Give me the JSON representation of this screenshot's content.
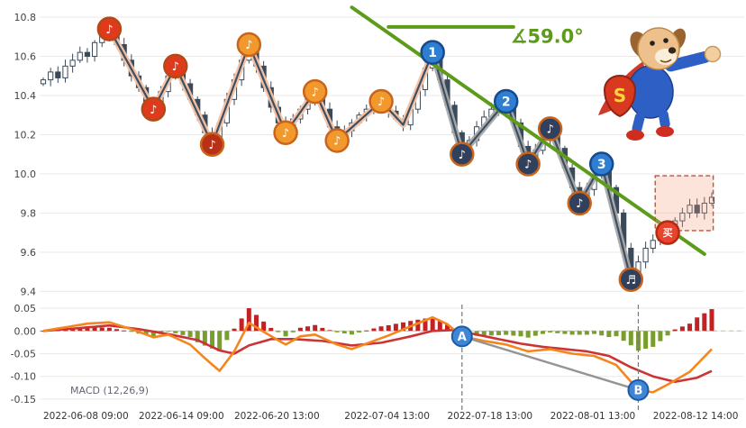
{
  "mascot": {
    "badge": "S"
  },
  "chart_data": {
    "type": "candlestick",
    "title": "",
    "x_axis_labels": [
      "2022-06-08 09:00",
      "2022-06-14 09:00",
      "2022-06-20 13:00",
      "2022-07-04 13:00",
      "2022-07-18 13:00",
      "2022-08-01 13:00",
      "2022-08-12 14:00"
    ],
    "x_label_positions": [
      0,
      13,
      26,
      41,
      55,
      69,
      83
    ],
    "colors": {
      "trend": "#5c9c1a",
      "zigzag_left": "#f6c3a6",
      "zigzag_right": "#a9a9a9",
      "zigzag_core": "#3d4f63",
      "candle": "#3b4a5a"
    },
    "price_panel": {
      "ylim": [
        9.36,
        10.86
      ],
      "y_ticks": [
        "10.8",
        "10.6",
        "10.4",
        "10.2",
        "10.0",
        "9.8",
        "9.6",
        "9.4"
      ],
      "y_tick_values": [
        10.8,
        10.6,
        10.4,
        10.2,
        10.0,
        9.8,
        9.6,
        9.4
      ],
      "closes": [
        10.48,
        10.52,
        10.49,
        10.55,
        10.58,
        10.62,
        10.6,
        10.67,
        10.71,
        10.74,
        10.66,
        10.58,
        10.5,
        10.44,
        10.37,
        10.33,
        10.42,
        10.5,
        10.55,
        10.46,
        10.38,
        10.3,
        10.21,
        10.15,
        10.26,
        10.38,
        10.48,
        10.58,
        10.66,
        10.55,
        10.44,
        10.34,
        10.26,
        10.21,
        10.28,
        10.33,
        10.38,
        10.42,
        10.33,
        10.24,
        10.17,
        10.22,
        10.26,
        10.3,
        10.33,
        10.35,
        10.37,
        10.32,
        10.28,
        10.25,
        10.33,
        10.43,
        10.54,
        10.62,
        10.48,
        10.35,
        10.21,
        10.1,
        10.17,
        10.24,
        10.29,
        10.33,
        10.35,
        10.37,
        10.26,
        10.14,
        10.05,
        10.12,
        10.18,
        10.23,
        10.13,
        10.03,
        9.93,
        9.85,
        9.92,
        9.99,
        10.05,
        9.93,
        9.8,
        9.62,
        9.46,
        9.55,
        9.62,
        9.66,
        9.68,
        9.7,
        9.76,
        9.8,
        9.84,
        9.8,
        9.85,
        9.88
      ],
      "zigzag_left": [
        [
          9,
          10.74
        ],
        [
          15,
          10.33
        ],
        [
          18,
          10.55
        ],
        [
          23,
          10.15
        ],
        [
          28,
          10.66
        ],
        [
          33,
          10.21
        ],
        [
          37,
          10.42
        ],
        [
          40,
          10.17
        ],
        [
          46,
          10.37
        ],
        [
          49,
          10.25
        ],
        [
          53,
          10.62
        ]
      ],
      "zigzag_right": [
        [
          53,
          10.62
        ],
        [
          57,
          10.1
        ],
        [
          63,
          10.37
        ],
        [
          66,
          10.05
        ],
        [
          69,
          10.23
        ],
        [
          73,
          9.85
        ],
        [
          76,
          10.05
        ],
        [
          80,
          9.46
        ]
      ],
      "trendline": {
        "from": [
          42,
          10.85
        ],
        "to": [
          90,
          9.59
        ]
      },
      "angle_line": {
        "from": [
          47,
          10.75
        ],
        "to": [
          64,
          10.75
        ]
      },
      "angle_label": "∡59.0°",
      "buy_box": {
        "i1": 83.3,
        "i2": 91.2,
        "p1": 9.71,
        "p2": 9.99
      },
      "markers": [
        {
          "i": 9,
          "p": 10.74,
          "kind": "note",
          "style": "red",
          "glyph": "♪"
        },
        {
          "i": 15,
          "p": 10.33,
          "kind": "note",
          "style": "red",
          "glyph": "♪"
        },
        {
          "i": 18,
          "p": 10.55,
          "kind": "note",
          "style": "red",
          "glyph": "♪"
        },
        {
          "i": 23,
          "p": 10.15,
          "kind": "note",
          "style": "darkred",
          "glyph": "♪"
        },
        {
          "i": 28,
          "p": 10.66,
          "kind": "note",
          "style": "orange",
          "glyph": "♪"
        },
        {
          "i": 33,
          "p": 10.21,
          "kind": "note",
          "style": "orange",
          "glyph": "♪"
        },
        {
          "i": 37,
          "p": 10.42,
          "kind": "note",
          "style": "orange",
          "glyph": "♪"
        },
        {
          "i": 40,
          "p": 10.17,
          "kind": "note",
          "style": "orange",
          "glyph": "♪"
        },
        {
          "i": 46,
          "p": 10.37,
          "kind": "note",
          "style": "orange",
          "glyph": "♪"
        },
        {
          "i": 53,
          "p": 10.62,
          "kind": "number",
          "label": "1"
        },
        {
          "i": 57,
          "p": 10.1,
          "kind": "note",
          "style": "dark",
          "glyph": "♪"
        },
        {
          "i": 63,
          "p": 10.37,
          "kind": "number",
          "label": "2"
        },
        {
          "i": 66,
          "p": 10.05,
          "kind": "note",
          "style": "dark",
          "glyph": "♪"
        },
        {
          "i": 69,
          "p": 10.23,
          "kind": "note",
          "style": "dark",
          "glyph": "♪"
        },
        {
          "i": 73,
          "p": 9.85,
          "kind": "note",
          "style": "dark",
          "glyph": "♪"
        },
        {
          "i": 76,
          "p": 10.05,
          "kind": "number",
          "label": "3"
        },
        {
          "i": 80,
          "p": 9.46,
          "kind": "note",
          "style": "dark",
          "glyph": "♬"
        },
        {
          "i": 85,
          "p": 9.7,
          "kind": "buy",
          "label": "买"
        }
      ]
    },
    "macd_panel": {
      "label": "MACD (12,26,9)",
      "ylim": [
        -0.168,
        0.062
      ],
      "y_ticks": [
        "0.05",
        "0.00",
        "-0.05",
        "-0.10",
        "-0.15"
      ],
      "y_tick_values": [
        0.05,
        0.0,
        -0.05,
        -0.1,
        -0.15
      ],
      "colors": {
        "dif": "#f5861f",
        "dea": "#cc3333",
        "hist_pos": "#c22222",
        "hist_neg": "#7a9e2e"
      },
      "dif_keypoints": [
        [
          0,
          0.0
        ],
        [
          3,
          0.008
        ],
        [
          6,
          0.016
        ],
        [
          9,
          0.019
        ],
        [
          12,
          0.004
        ],
        [
          15,
          -0.014
        ],
        [
          17,
          -0.008
        ],
        [
          20,
          -0.03
        ],
        [
          22,
          -0.06
        ],
        [
          24,
          -0.088
        ],
        [
          26,
          -0.045
        ],
        [
          28,
          0.018
        ],
        [
          30,
          -0.002
        ],
        [
          33,
          -0.03
        ],
        [
          35,
          -0.012
        ],
        [
          37,
          -0.008
        ],
        [
          40,
          -0.03
        ],
        [
          42,
          -0.04
        ],
        [
          44,
          -0.028
        ],
        [
          47,
          -0.01
        ],
        [
          50,
          0.01
        ],
        [
          53,
          0.03
        ],
        [
          55,
          0.015
        ],
        [
          57,
          -0.012
        ],
        [
          60,
          -0.022
        ],
        [
          63,
          -0.03
        ],
        [
          66,
          -0.045
        ],
        [
          69,
          -0.04
        ],
        [
          72,
          -0.05
        ],
        [
          75,
          -0.055
        ],
        [
          78,
          -0.075
        ],
        [
          81,
          -0.13
        ],
        [
          83,
          -0.135
        ],
        [
          85,
          -0.118
        ],
        [
          88,
          -0.09
        ],
        [
          91,
          -0.04
        ]
      ],
      "dea_keypoints": [
        [
          0,
          0.0
        ],
        [
          4,
          0.005
        ],
        [
          9,
          0.012
        ],
        [
          13,
          0.004
        ],
        [
          17,
          -0.007
        ],
        [
          21,
          -0.02
        ],
        [
          24,
          -0.043
        ],
        [
          26,
          -0.05
        ],
        [
          28,
          -0.032
        ],
        [
          31,
          -0.018
        ],
        [
          34,
          -0.018
        ],
        [
          38,
          -0.022
        ],
        [
          42,
          -0.032
        ],
        [
          46,
          -0.026
        ],
        [
          50,
          -0.012
        ],
        [
          53,
          0.0
        ],
        [
          56,
          0.002
        ],
        [
          59,
          -0.008
        ],
        [
          62,
          -0.018
        ],
        [
          65,
          -0.028
        ],
        [
          68,
          -0.035
        ],
        [
          71,
          -0.04
        ],
        [
          74,
          -0.045
        ],
        [
          77,
          -0.055
        ],
        [
          80,
          -0.08
        ],
        [
          83,
          -0.1
        ],
        [
          86,
          -0.112
        ],
        [
          89,
          -0.103
        ],
        [
          91,
          -0.088
        ]
      ],
      "markers": [
        {
          "i": 57,
          "v": -0.012,
          "label": "A"
        },
        {
          "i": 81,
          "v": -0.13,
          "label": "B"
        }
      ]
    }
  }
}
